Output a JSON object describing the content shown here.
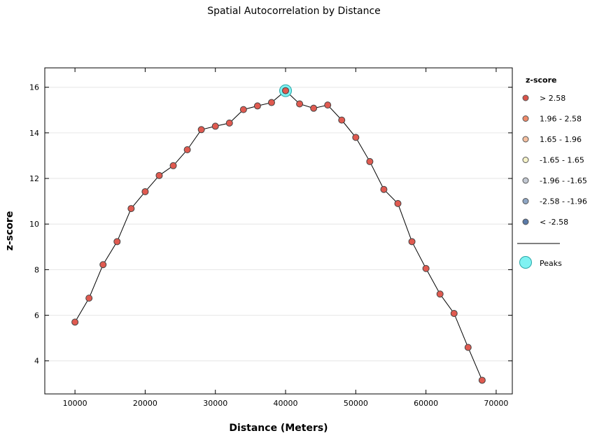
{
  "chart_data": {
    "type": "line",
    "title": "Spatial Autocorrelation by Distance",
    "xlabel": "Distance (Meters)",
    "ylabel": "z-score",
    "xlim": [
      5700,
      72300
    ],
    "ylim": [
      2.55,
      16.85
    ],
    "xticks": [
      10000,
      20000,
      30000,
      40000,
      50000,
      60000,
      70000
    ],
    "yticks": [
      4,
      6,
      8,
      10,
      12,
      14,
      16
    ],
    "grid": true,
    "legend_position": "right",
    "x": [
      10000,
      12000,
      14000,
      16000,
      18000,
      20000,
      22000,
      24000,
      26000,
      28000,
      30000,
      32000,
      34000,
      36000,
      38000,
      40000,
      42000,
      44000,
      46000,
      48000,
      50000,
      52000,
      54000,
      56000,
      58000,
      60000,
      62000,
      64000,
      66000,
      68000
    ],
    "series": [
      {
        "values": [
          5.7,
          6.75,
          8.22,
          9.23,
          10.68,
          11.42,
          12.13,
          12.56,
          13.26,
          14.14,
          14.29,
          14.43,
          15.02,
          15.18,
          15.33,
          15.85,
          15.27,
          15.08,
          15.22,
          14.56,
          13.8,
          12.74,
          11.52,
          10.9,
          9.23,
          8.05,
          6.93,
          6.08,
          4.59,
          3.15
        ],
        "color": "#e05a50"
      }
    ],
    "peaks": [
      {
        "x": 40000,
        "y": 15.85
      }
    ],
    "peak_color": "#7ff2f2",
    "legend": {
      "title": "z-score",
      "items": [
        {
          "label": "> 2.58",
          "color": "#d9534a"
        },
        {
          "label": "1.96 - 2.58",
          "color": "#ee8a6a"
        },
        {
          "label": "1.65 - 1.96",
          "color": "#f4bfa0"
        },
        {
          "label": "-1.65 - 1.65",
          "color": "#f5f2c8"
        },
        {
          "label": "-1.96 - -1.65",
          "color": "#c2c8d2"
        },
        {
          "label": "-2.58 - -1.96",
          "color": "#8ea6c4"
        },
        {
          "label": "< -2.58",
          "color": "#5a7aa8"
        }
      ],
      "peaks_label": "Peaks"
    }
  }
}
